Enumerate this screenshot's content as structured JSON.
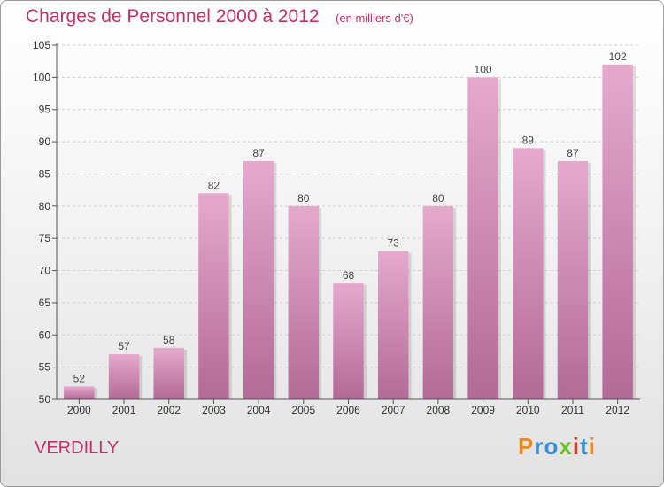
{
  "header": {
    "title": "Charges de Personnel 2000 à 2012",
    "subtitle": "(en milliers d'€)"
  },
  "footer": {
    "place": "VERDILLY",
    "logo_text": "Proxiti",
    "logo_colors": [
      "#f08a1c",
      "#3b8fd6",
      "#3b8fd6",
      "#6cbf2a",
      "#e23a2a",
      "#3b8fd6",
      "#f08a1c"
    ]
  },
  "colors": {
    "title": "#c0306a",
    "bar_top": "#e6a9cc",
    "bar_bottom": "#b26a97",
    "axis": "#555555",
    "grid": "#cfcfcf"
  },
  "chart_data": {
    "type": "bar",
    "title": "Charges de Personnel 2000 à 2012",
    "subtitle": "(en milliers d'€)",
    "xlabel": "",
    "ylabel": "",
    "ylim": [
      50,
      105
    ],
    "yticks": [
      50,
      55,
      60,
      65,
      70,
      75,
      80,
      85,
      90,
      95,
      100,
      105
    ],
    "categories": [
      "2000",
      "2001",
      "2002",
      "2003",
      "2004",
      "2005",
      "2006",
      "2007",
      "2008",
      "2009",
      "2010",
      "2011",
      "2012"
    ],
    "values": [
      52,
      57,
      58,
      82,
      87,
      80,
      68,
      73,
      80,
      100,
      89,
      87,
      102
    ],
    "grid": "horizontal dashed",
    "legend": "none"
  }
}
